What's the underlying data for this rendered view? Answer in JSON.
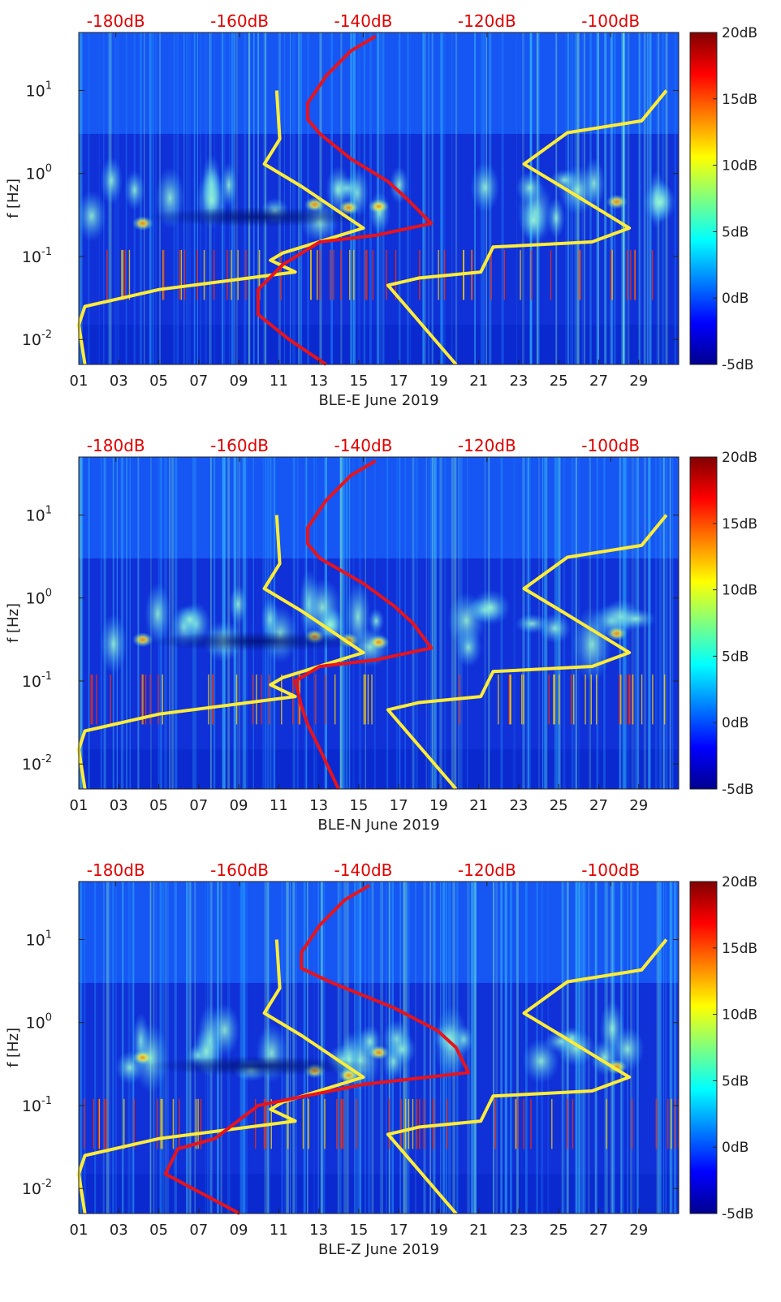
{
  "figure": {
    "panel_labels": [
      "BLE-E June 2019",
      "BLE-N June 2019",
      "BLE-Z June 2019"
    ]
  },
  "chart_data": [
    {
      "type": "heatmap",
      "title": "",
      "xlabel": "BLE-E June 2019",
      "ylabel": "f [Hz]",
      "x_ticks": [
        "01",
        "03",
        "05",
        "07",
        "09",
        "11",
        "13",
        "15",
        "17",
        "19",
        "21",
        "23",
        "25",
        "27",
        "29"
      ],
      "x_range_days": [
        1,
        31
      ],
      "y_scale": "log",
      "y_range_hz": [
        0.005,
        50
      ],
      "y_ticks": [
        {
          "label": "10",
          "exp": "-2",
          "value": 0.01
        },
        {
          "label": "10",
          "exp": "-1",
          "value": 0.1
        },
        {
          "label": "10",
          "exp": "0",
          "value": 1
        },
        {
          "label": "10",
          "exp": "1",
          "value": 10
        }
      ],
      "top_axis_ticks": [
        "-180dB",
        "-160dB",
        "-140dB",
        "-120dB",
        "-100dB"
      ],
      "top_axis_range_db": [
        -186,
        -89
      ],
      "colorbar": {
        "ticks": [
          "20dB",
          "15dB",
          "10dB",
          "5dB",
          "0dB",
          "-5dB"
        ],
        "range": [
          -5,
          20
        ]
      },
      "series": [
        {
          "color": "yellow",
          "points": [
            [
              -154,
              10
            ],
            [
              -153.5,
              2.6
            ],
            [
              -156,
              1.3
            ],
            [
              -150,
              0.7
            ],
            [
              -140,
              0.22
            ],
            [
              -153,
              0.11
            ],
            [
              -155,
              0.09
            ],
            [
              -151,
              0.065
            ],
            [
              -173,
              0.04
            ],
            [
              -185,
              0.025
            ],
            [
              -186,
              0.015
            ],
            [
              -185,
              0.005
            ]
          ]
        },
        {
          "color": "yellow",
          "points": [
            [
              -91,
              10
            ],
            [
              -95,
              4.3
            ],
            [
              -107,
              3.1
            ],
            [
              -114,
              1.3
            ],
            [
              -108,
              0.7
            ],
            [
              -97,
              0.22
            ],
            [
              -103,
              0.15
            ],
            [
              -119,
              0.13
            ],
            [
              -121,
              0.065
            ],
            [
              -131,
              0.055
            ],
            [
              -136,
              0.045
            ],
            [
              -125,
              0.005
            ]
          ]
        },
        {
          "color": "red",
          "points": [
            [
              -138,
              45
            ],
            [
              -142,
              30
            ],
            [
              -146,
              15
            ],
            [
              -149,
              7
            ],
            [
              -149,
              4.5
            ],
            [
              -147,
              3
            ],
            [
              -142,
              1.5
            ],
            [
              -136,
              0.8
            ],
            [
              -133,
              0.5
            ],
            [
              -129,
              0.25
            ],
            [
              -138,
              0.18
            ],
            [
              -147,
              0.15
            ],
            [
              -153,
              0.08
            ],
            [
              -157,
              0.04
            ],
            [
              -157,
              0.02
            ],
            [
              -152,
              0.01
            ],
            [
              -146,
              0.005
            ]
          ]
        }
      ]
    },
    {
      "type": "heatmap",
      "title": "",
      "xlabel": "BLE-N June 2019",
      "ylabel": "f [Hz]",
      "x_ticks": [
        "01",
        "03",
        "05",
        "07",
        "09",
        "11",
        "13",
        "15",
        "17",
        "19",
        "21",
        "23",
        "25",
        "27",
        "29"
      ],
      "x_range_days": [
        1,
        31
      ],
      "y_scale": "log",
      "y_range_hz": [
        0.005,
        50
      ],
      "y_ticks": [
        {
          "label": "10",
          "exp": "-2",
          "value": 0.01
        },
        {
          "label": "10",
          "exp": "-1",
          "value": 0.1
        },
        {
          "label": "10",
          "exp": "0",
          "value": 1
        },
        {
          "label": "10",
          "exp": "1",
          "value": 10
        }
      ],
      "top_axis_ticks": [
        "-180dB",
        "-160dB",
        "-140dB",
        "-120dB",
        "-100dB"
      ],
      "top_axis_range_db": [
        -186,
        -89
      ],
      "colorbar": {
        "ticks": [
          "20dB",
          "15dB",
          "10dB",
          "5dB",
          "0dB",
          "-5dB"
        ],
        "range": [
          -5,
          20
        ]
      },
      "series": [
        {
          "color": "yellow",
          "points": [
            [
              -154,
              10
            ],
            [
              -153.5,
              2.6
            ],
            [
              -156,
              1.3
            ],
            [
              -150,
              0.7
            ],
            [
              -140,
              0.22
            ],
            [
              -153,
              0.11
            ],
            [
              -155,
              0.09
            ],
            [
              -151,
              0.065
            ],
            [
              -173,
              0.04
            ],
            [
              -185,
              0.025
            ],
            [
              -186,
              0.015
            ],
            [
              -185,
              0.005
            ]
          ]
        },
        {
          "color": "yellow",
          "points": [
            [
              -91,
              10
            ],
            [
              -95,
              4.3
            ],
            [
              -107,
              3.1
            ],
            [
              -114,
              1.3
            ],
            [
              -108,
              0.7
            ],
            [
              -97,
              0.22
            ],
            [
              -103,
              0.15
            ],
            [
              -119,
              0.13
            ],
            [
              -121,
              0.065
            ],
            [
              -131,
              0.055
            ],
            [
              -136,
              0.045
            ],
            [
              -125,
              0.005
            ]
          ]
        },
        {
          "color": "red",
          "points": [
            [
              -138,
              45
            ],
            [
              -142,
              30
            ],
            [
              -146,
              15
            ],
            [
              -149,
              7
            ],
            [
              -149,
              4.5
            ],
            [
              -147,
              3
            ],
            [
              -140,
              1.5
            ],
            [
              -135,
              0.8
            ],
            [
              -132,
              0.5
            ],
            [
              -129,
              0.25
            ],
            [
              -138,
              0.18
            ],
            [
              -147,
              0.15
            ],
            [
              -151,
              0.1
            ],
            [
              -150,
              0.05
            ],
            [
              -149,
              0.03
            ],
            [
              -147,
              0.015
            ],
            [
              -144,
              0.005
            ]
          ]
        }
      ]
    },
    {
      "type": "heatmap",
      "title": "",
      "xlabel": "BLE-Z June 2019",
      "ylabel": "f [Hz]",
      "x_ticks": [
        "01",
        "03",
        "05",
        "07",
        "09",
        "11",
        "13",
        "15",
        "17",
        "19",
        "21",
        "23",
        "25",
        "27",
        "29"
      ],
      "x_range_days": [
        1,
        31
      ],
      "y_scale": "log",
      "y_range_hz": [
        0.005,
        50
      ],
      "y_ticks": [
        {
          "label": "10",
          "exp": "-2",
          "value": 0.01
        },
        {
          "label": "10",
          "exp": "-1",
          "value": 0.1
        },
        {
          "label": "10",
          "exp": "0",
          "value": 1
        },
        {
          "label": "10",
          "exp": "1",
          "value": 10
        }
      ],
      "top_axis_ticks": [
        "-180dB",
        "-160dB",
        "-140dB",
        "-120dB",
        "-100dB"
      ],
      "top_axis_range_db": [
        -186,
        -89
      ],
      "colorbar": {
        "ticks": [
          "20dB",
          "15dB",
          "10dB",
          "5dB",
          "0dB",
          "-5dB"
        ],
        "range": [
          -5,
          20
        ]
      },
      "series": [
        {
          "color": "yellow",
          "points": [
            [
              -154,
              10
            ],
            [
              -153.5,
              2.6
            ],
            [
              -156,
              1.3
            ],
            [
              -150,
              0.7
            ],
            [
              -140,
              0.22
            ],
            [
              -153,
              0.11
            ],
            [
              -155,
              0.09
            ],
            [
              -151,
              0.065
            ],
            [
              -173,
              0.04
            ],
            [
              -185,
              0.025
            ],
            [
              -186,
              0.015
            ],
            [
              -185,
              0.005
            ]
          ]
        },
        {
          "color": "yellow",
          "points": [
            [
              -91,
              10
            ],
            [
              -95,
              4.3
            ],
            [
              -107,
              3.1
            ],
            [
              -114,
              1.3
            ],
            [
              -108,
              0.7
            ],
            [
              -97,
              0.22
            ],
            [
              -103,
              0.15
            ],
            [
              -119,
              0.13
            ],
            [
              -121,
              0.065
            ],
            [
              -131,
              0.055
            ],
            [
              -136,
              0.045
            ],
            [
              -125,
              0.005
            ]
          ]
        },
        {
          "color": "red",
          "points": [
            [
              -139,
              45
            ],
            [
              -143,
              30
            ],
            [
              -147,
              15
            ],
            [
              -150,
              7
            ],
            [
              -150,
              4.5
            ],
            [
              -145,
              3
            ],
            [
              -135,
              1.5
            ],
            [
              -128,
              0.8
            ],
            [
              -125,
              0.5
            ],
            [
              -123,
              0.25
            ],
            [
              -140,
              0.18
            ],
            [
              -157,
              0.1
            ],
            [
              -164,
              0.04
            ],
            [
              -170,
              0.03
            ],
            [
              -172,
              0.015
            ],
            [
              -160,
              0.005
            ]
          ]
        }
      ]
    }
  ]
}
